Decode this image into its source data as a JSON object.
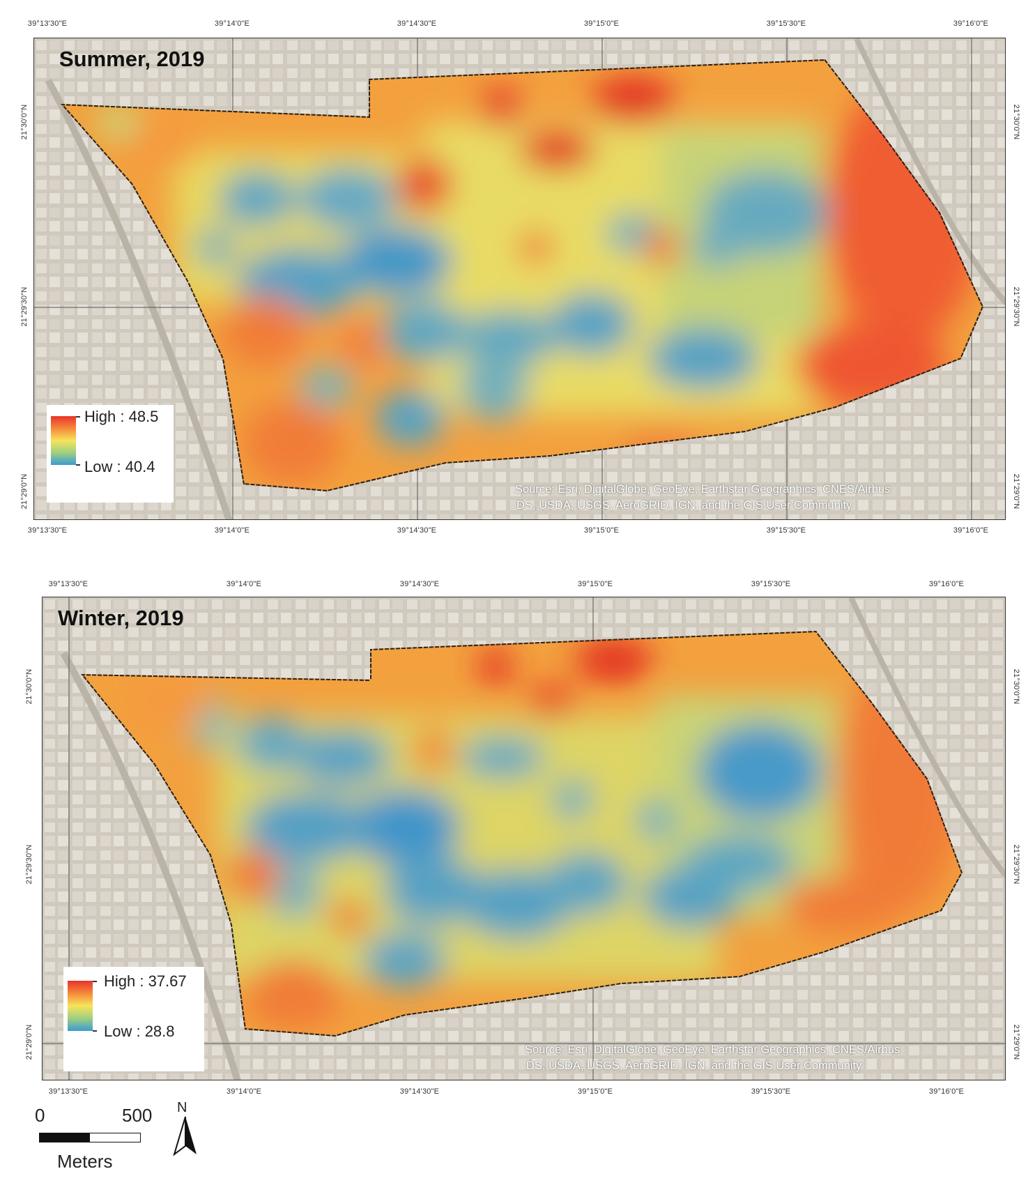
{
  "panels": [
    {
      "title": "Summer, 2019",
      "legend": {
        "high_label": "High : 48.5",
        "low_label": "Low : 40.4",
        "high_value": 48.5,
        "low_value": 40.4
      },
      "source_line1": "Source: Esri, DigitalGlobe, GeoEye, Earthstar Geographics, CNES/Airbus",
      "source_line2": "DS, USDA, USGS, AeroGRID, IGN, and the GIS User Community",
      "top_ticks": [
        "39°13'30\"E",
        "39°14'0\"E",
        "39°14'30\"E",
        "39°15'0\"E",
        "39°15'30\"E",
        "39°16'0\"E"
      ],
      "bottom_ticks": [
        "39°13'30\"E",
        "39°14'0\"E",
        "39°14'30\"E",
        "39°15'0\"E",
        "39°15'30\"E",
        "39°16'0\"E"
      ],
      "left_ticks": [
        "21°30'0\"N",
        "21°29'30\"N",
        "21°29'0\"N"
      ],
      "right_ticks": [
        "21°30'0\"N",
        "21°29'30\"N",
        "21°29'0\"N"
      ]
    },
    {
      "title": "Winter, 2019",
      "legend": {
        "high_label": "High : 37.67",
        "low_label": "Low : 28.8",
        "high_value": 37.67,
        "low_value": 28.8
      },
      "source_line1": "Source: Esri, DigitalGlobe, GeoEye, Earthstar Geographics, CNES/Airbus",
      "source_line2": "DS, USDA, USGS, AeroGRID, IGN, and the GIS User Community",
      "top_ticks": [
        "39°13'30\"E",
        "39°14'0\"E",
        "39°14'30\"E",
        "39°15'0\"E",
        "39°15'30\"E",
        "39°16'0\"E"
      ],
      "bottom_ticks": [
        "39°13'30\"E",
        "39°14'0\"E",
        "39°14'30\"E",
        "39°15'0\"E",
        "39°15'30\"E",
        "39°16'0\"E"
      ],
      "left_ticks": [
        "21°30'0\"N",
        "21°29'30\"N",
        "21°29'0\"N"
      ],
      "right_ticks": [
        "21°30'0\"N",
        "21°29'30\"N",
        "21°29'0\"N"
      ]
    }
  ],
  "scale_bar": {
    "start": "0",
    "end": "500",
    "unit": "Meters"
  },
  "north_arrow": {
    "letter": "N"
  },
  "colors": {
    "high": "#e8332b",
    "mid_high": "#f58a3a",
    "mid": "#f7e35b",
    "mid_low": "#9fcf7f",
    "low": "#3a9bd3",
    "basemap": "#c9c3b8"
  }
}
